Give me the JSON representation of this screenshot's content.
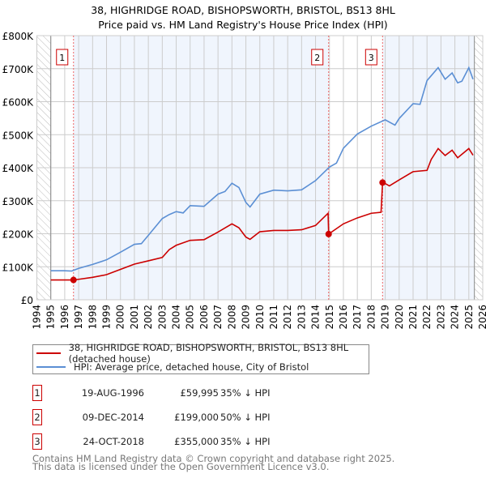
{
  "chart_data": {
    "type": "line",
    "title": "38, HIGHRIDGE ROAD, BISHOPSWORTH, BRISTOL, BS13 8HL",
    "subtitle": "Price paid vs. HM Land Registry's House Price Index (HPI)",
    "xlim": [
      1994,
      2026
    ],
    "ylim": [
      0,
      800000
    ],
    "x_ticks": [
      "1994",
      "1995",
      "1996",
      "1997",
      "1998",
      "1999",
      "2000",
      "2001",
      "2002",
      "2003",
      "2004",
      "2005",
      "2006",
      "2007",
      "2008",
      "2009",
      "2010",
      "2011",
      "2012",
      "2013",
      "2014",
      "2015",
      "2016",
      "2017",
      "2018",
      "2019",
      "2020",
      "2021",
      "2022",
      "2023",
      "2024",
      "2025",
      "2026"
    ],
    "y_ticks": [
      {
        "v": 0,
        "label": "£0"
      },
      {
        "v": 100000,
        "label": "£100K"
      },
      {
        "v": 200000,
        "label": "£200K"
      },
      {
        "v": 300000,
        "label": "£300K"
      },
      {
        "v": 400000,
        "label": "£400K"
      },
      {
        "v": 500000,
        "label": "£500K"
      },
      {
        "v": 600000,
        "label": "£600K"
      },
      {
        "v": 700000,
        "label": "£700K"
      },
      {
        "v": 800000,
        "label": "£800K"
      }
    ],
    "grid": true,
    "series": [
      {
        "name": "38, HIGHRIDGE ROAD, BISHOPSWORTH, BRISTOL, BS13 8HL (detached house)",
        "color": "#cc0000",
        "x": [
          1995,
          1996.63,
          1997,
          1998,
          1999,
          2000,
          2001,
          2002,
          2003,
          2003.5,
          2004,
          2005,
          2006,
          2007,
          2008,
          2008.5,
          2009,
          2009.3,
          2010,
          2011,
          2012,
          2013,
          2014,
          2014.9,
          2014.94,
          2016,
          2017,
          2018,
          2018.7,
          2018.81,
          2019,
          2019.3,
          2020,
          2021,
          2022,
          2022.3,
          2022.8,
          2023.3,
          2023.8,
          2024.2,
          2025,
          2025.3
        ],
        "y": [
          59995,
          59995,
          62000,
          68000,
          76000,
          92000,
          108000,
          118000,
          128000,
          152000,
          165000,
          180000,
          182000,
          205000,
          230000,
          218000,
          190000,
          183000,
          206000,
          210000,
          210000,
          212000,
          225000,
          262000,
          199000,
          230000,
          248000,
          262000,
          265000,
          355000,
          352000,
          345000,
          363000,
          388000,
          392000,
          425000,
          458000,
          437000,
          453000,
          430000,
          458000,
          438000
        ]
      },
      {
        "name": "HPI: Average price, detached house, City of Bristol",
        "color": "#5b8fd4",
        "x": [
          1995,
          1996,
          1996.5,
          1997,
          1998,
          1999,
          2000,
          2001,
          2001.5,
          2002,
          2003,
          2003.5,
          2004,
          2004.5,
          2005,
          2006,
          2007,
          2007.5,
          2008,
          2008.5,
          2009,
          2009.3,
          2010,
          2011,
          2012,
          2013,
          2014,
          2015,
          2015.5,
          2016,
          2017,
          2018,
          2019,
          2019.7,
          2020,
          2021,
          2021.5,
          2022,
          2022.8,
          2023.3,
          2023.8,
          2024.2,
          2024.5,
          2025,
          2025.3
        ],
        "y": [
          88000,
          88000,
          87000,
          95000,
          107000,
          121000,
          144000,
          168000,
          170000,
          195000,
          246000,
          258000,
          267000,
          263000,
          285000,
          283000,
          320000,
          328000,
          353000,
          340000,
          295000,
          281000,
          320000,
          332000,
          330000,
          333000,
          361000,
          402000,
          414000,
          459000,
          502000,
          526000,
          545000,
          529000,
          549000,
          594000,
          592000,
          664000,
          703000,
          668000,
          687000,
          657000,
          662000,
          703000,
          668000
        ]
      }
    ],
    "sales": [
      {
        "n": "1",
        "x": 1996.63,
        "y": 59995
      },
      {
        "n": "2",
        "x": 2014.94,
        "y": 199000
      },
      {
        "n": "3",
        "x": 2018.81,
        "y": 355000
      }
    ],
    "data_end": 2025.4
  },
  "legend": {
    "property": "38, HIGHRIDGE ROAD, BISHOPSWORTH, BRISTOL, BS13 8HL (detached house)",
    "hpi": "HPI: Average price, detached house, City of Bristol"
  },
  "sales_table": [
    {
      "num": "1",
      "date": "19-AUG-1996",
      "price": "£59,995",
      "hpi": "35% ↓ HPI"
    },
    {
      "num": "2",
      "date": "09-DEC-2014",
      "price": "£199,000",
      "hpi": "50% ↓ HPI"
    },
    {
      "num": "3",
      "date": "24-OCT-2018",
      "price": "£355,000",
      "hpi": "35% ↓ HPI"
    }
  ],
  "footer": {
    "line1": "Contains HM Land Registry data © Crown copyright and database right 2025.",
    "line2": "This data is licensed under the Open Government Licence v3.0."
  }
}
